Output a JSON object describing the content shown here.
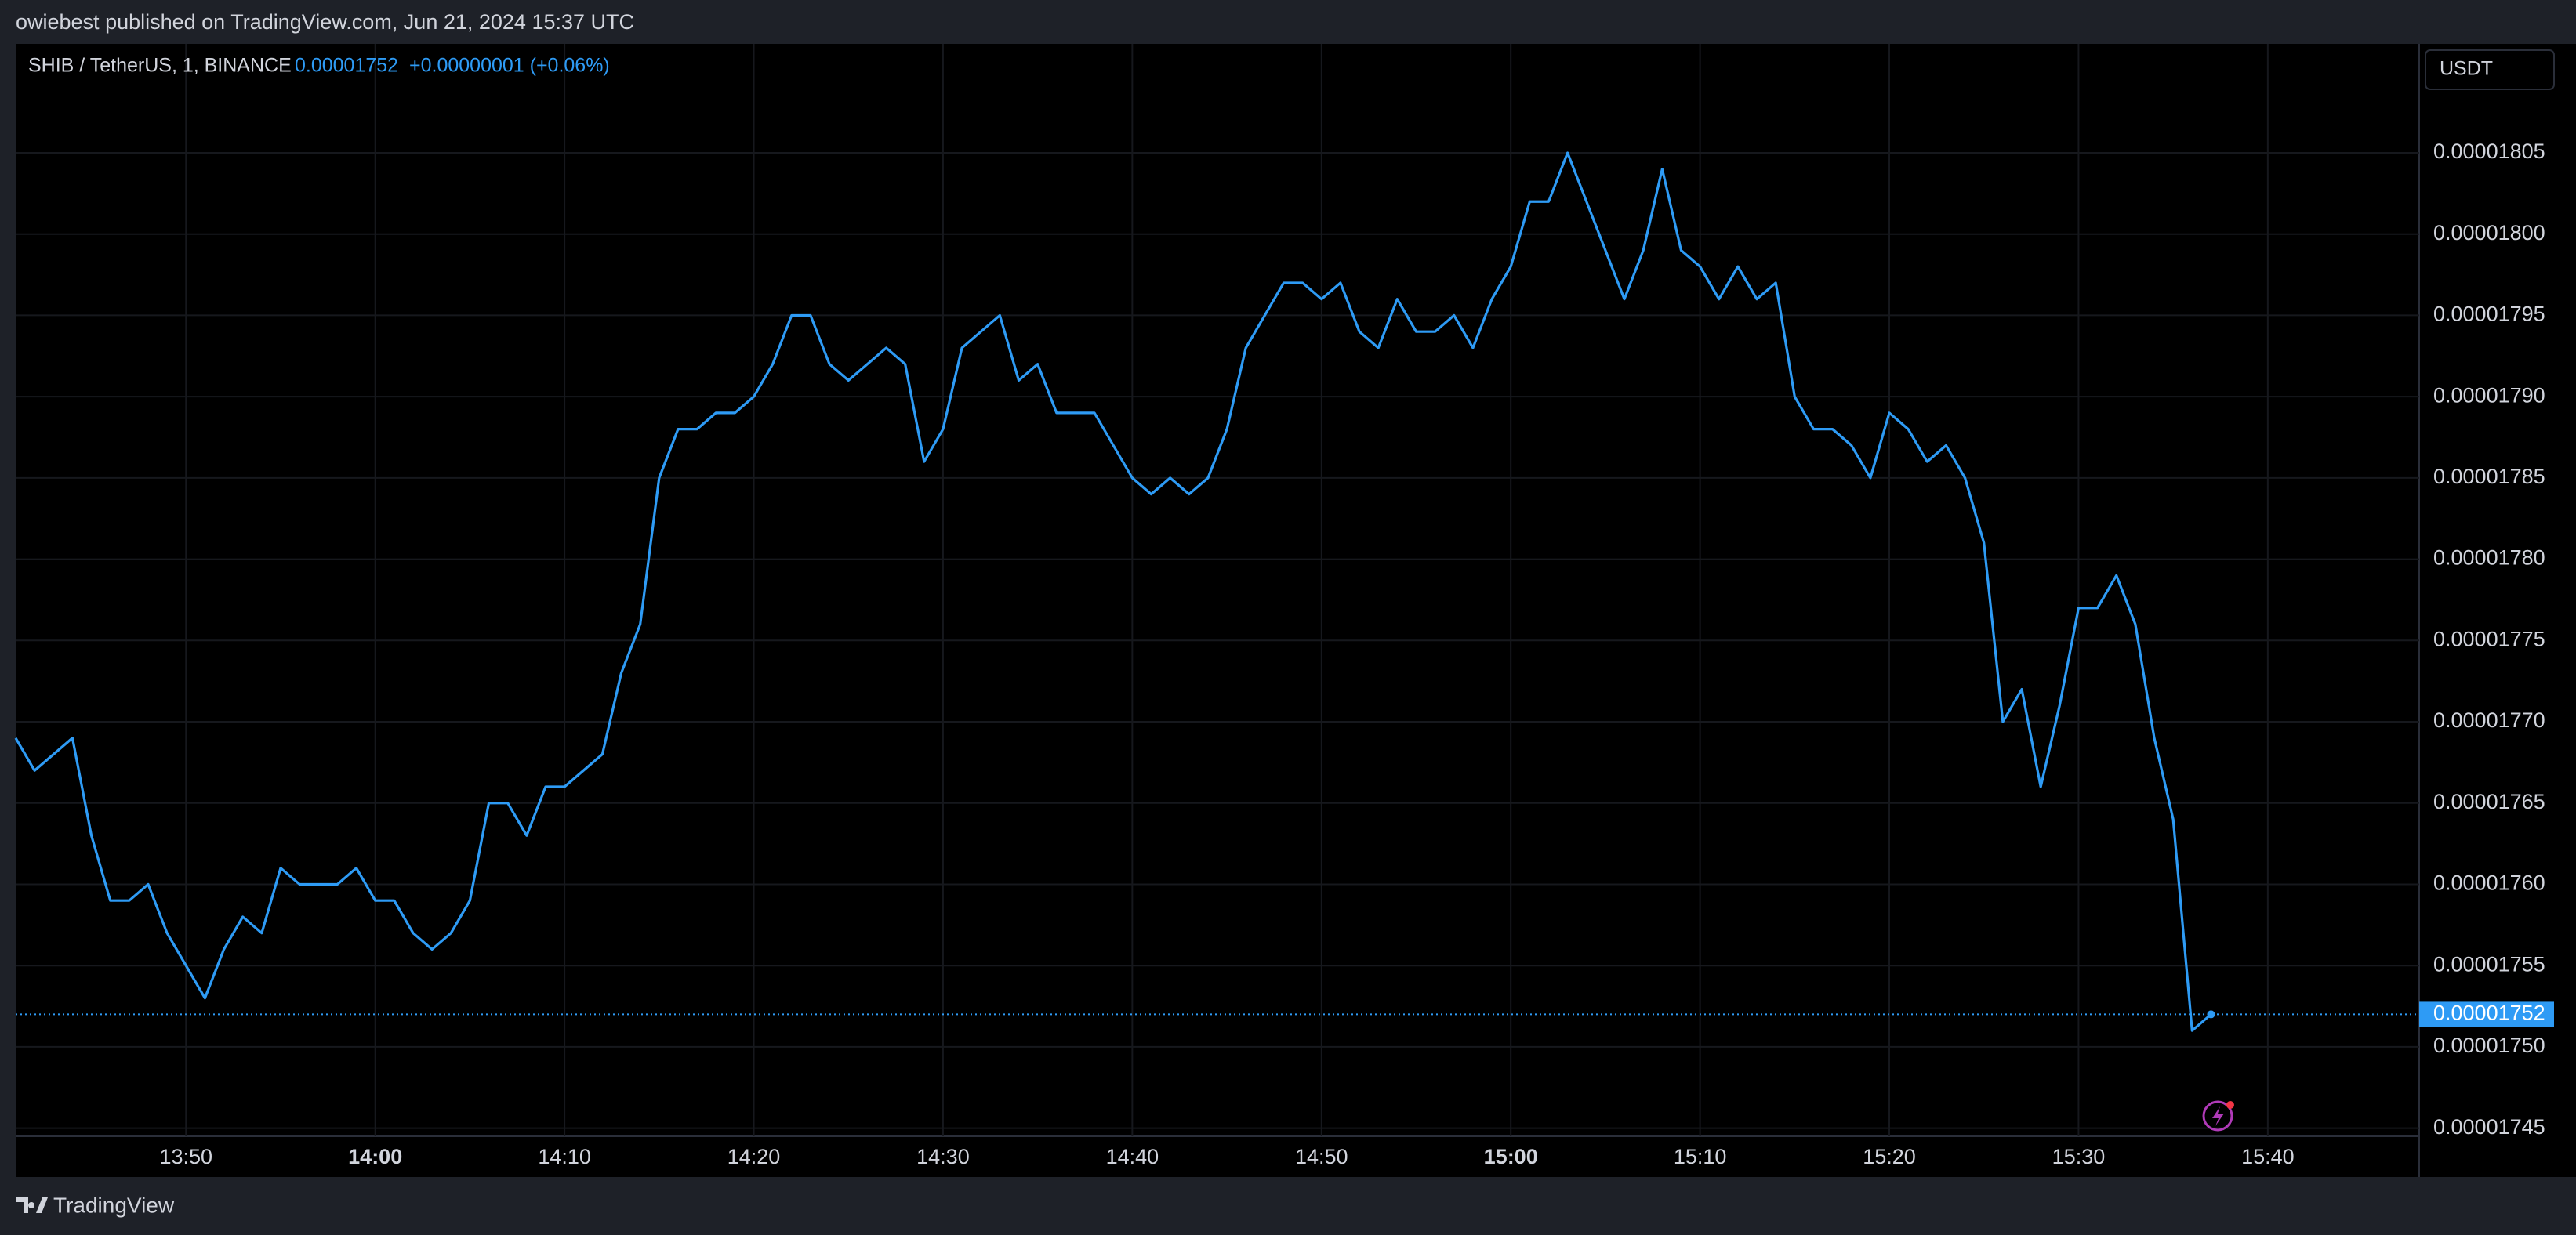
{
  "header": "owiebest published on TradingView.com, Jun 21, 2024 15:37 UTC",
  "footer": "TradingView",
  "chart_data": {
    "type": "line",
    "title": "SHIB / TetherUS, 1, BINANCE",
    "change": "+0.00000001 (+0.06%)",
    "currency": "USDT",
    "grid": true,
    "x": [
      "13:41",
      "13:42",
      "13:43",
      "13:44",
      "13:45",
      "13:46",
      "13:47",
      "13:48",
      "13:49",
      "13:50",
      "13:51",
      "13:52",
      "13:53",
      "13:54",
      "13:55",
      "13:56",
      "13:57",
      "13:58",
      "13:59",
      "14:00",
      "14:01",
      "14:02",
      "14:03",
      "14:04",
      "14:05",
      "14:06",
      "14:07",
      "14:08",
      "14:09",
      "14:10",
      "14:11",
      "14:12",
      "14:13",
      "14:14",
      "14:15",
      "14:16",
      "14:17",
      "14:18",
      "14:19",
      "14:20",
      "14:21",
      "14:22",
      "14:23",
      "14:24",
      "14:25",
      "14:26",
      "14:27",
      "14:28",
      "14:29",
      "14:30",
      "14:31",
      "14:32",
      "14:33",
      "14:34",
      "14:35",
      "14:36",
      "14:37",
      "14:38",
      "14:39",
      "14:40",
      "14:41",
      "14:42",
      "14:43",
      "14:44",
      "14:45",
      "14:46",
      "14:47",
      "14:48",
      "14:49",
      "14:50",
      "14:51",
      "14:52",
      "14:53",
      "14:54",
      "14:55",
      "14:56",
      "14:57",
      "14:58",
      "14:59",
      "15:00",
      "15:01",
      "15:02",
      "15:03",
      "15:04",
      "15:05",
      "15:06",
      "15:07",
      "15:08",
      "15:09",
      "15:10",
      "15:11",
      "15:12",
      "15:13",
      "15:14",
      "15:15",
      "15:16",
      "15:17",
      "15:18",
      "15:19",
      "15:20",
      "15:21",
      "15:22",
      "15:23",
      "15:24",
      "15:25",
      "15:26",
      "15:27",
      "15:28",
      "15:29",
      "15:30",
      "15:31",
      "15:32",
      "15:33",
      "15:34",
      "15:35",
      "15:36",
      "15:37"
    ],
    "series": [
      {
        "name": "SHIB / TetherUS",
        "color": "#2e9bf5",
        "values": [
          1.769e-05,
          1.767e-05,
          1.768e-05,
          1.769e-05,
          1.763e-05,
          1.759e-05,
          1.759e-05,
          1.76e-05,
          1.757e-05,
          1.755e-05,
          1.753e-05,
          1.756e-05,
          1.758e-05,
          1.757e-05,
          1.761e-05,
          1.76e-05,
          1.76e-05,
          1.76e-05,
          1.761e-05,
          1.759e-05,
          1.759e-05,
          1.757e-05,
          1.756e-05,
          1.757e-05,
          1.759e-05,
          1.765e-05,
          1.765e-05,
          1.763e-05,
          1.766e-05,
          1.766e-05,
          1.767e-05,
          1.768e-05,
          1.773e-05,
          1.776e-05,
          1.785e-05,
          1.788e-05,
          1.788e-05,
          1.789e-05,
          1.789e-05,
          1.79e-05,
          1.792e-05,
          1.795e-05,
          1.795e-05,
          1.792e-05,
          1.791e-05,
          1.792e-05,
          1.793e-05,
          1.792e-05,
          1.786e-05,
          1.788e-05,
          1.793e-05,
          1.794e-05,
          1.795e-05,
          1.791e-05,
          1.792e-05,
          1.789e-05,
          1.789e-05,
          1.789e-05,
          1.787e-05,
          1.785e-05,
          1.784e-05,
          1.785e-05,
          1.784e-05,
          1.785e-05,
          1.788e-05,
          1.793e-05,
          1.795e-05,
          1.797e-05,
          1.797e-05,
          1.796e-05,
          1.797e-05,
          1.794e-05,
          1.793e-05,
          1.796e-05,
          1.794e-05,
          1.794e-05,
          1.795e-05,
          1.793e-05,
          1.796e-05,
          1.798e-05,
          1.802e-05,
          1.802e-05,
          1.805e-05,
          1.802e-05,
          1.799e-05,
          1.796e-05,
          1.799e-05,
          1.804e-05,
          1.799e-05,
          1.798e-05,
          1.796e-05,
          1.798e-05,
          1.796e-05,
          1.797e-05,
          1.79e-05,
          1.788e-05,
          1.788e-05,
          1.787e-05,
          1.785e-05,
          1.789e-05,
          1.788e-05,
          1.786e-05,
          1.787e-05,
          1.785e-05,
          1.781e-05,
          1.77e-05,
          1.772e-05,
          1.766e-05,
          1.771e-05,
          1.777e-05,
          1.777e-05,
          1.779e-05,
          1.776e-05,
          1.769e-05,
          1.764e-05,
          1.751e-05,
          1.752e-05
        ]
      }
    ],
    "xlim": [
      "13:41",
      "15:48"
    ],
    "xticks": [
      "13:50",
      "14:00",
      "14:10",
      "14:20",
      "14:30",
      "14:40",
      "14:50",
      "15:00",
      "15:10",
      "15:20",
      "15:30",
      "15:40"
    ],
    "ylim": [
      1.7445e-05,
      1.8117e-05
    ],
    "yticks": [
      1.745e-05,
      {
        "value": 1.75e-05,
        "label": "0.00001750"
      },
      1.755e-05,
      {
        "value": 1.76e-05,
        "label": "0.00001760"
      },
      1.765e-05,
      {
        "value": 1.77e-05,
        "label": "0.00001770"
      },
      1.775e-05,
      {
        "value": 1.78e-05,
        "label": "0.00001780"
      },
      1.785e-05,
      {
        "value": 1.79e-05,
        "label": "0.00001790"
      },
      1.795e-05,
      {
        "value": 1.8e-05,
        "label": "0.00001800"
      },
      1.805e-05
    ]
  }
}
